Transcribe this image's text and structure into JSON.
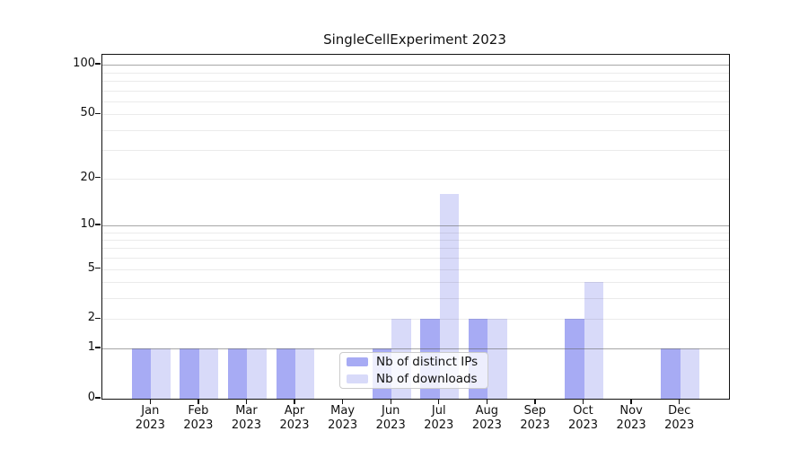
{
  "title": "SingleCellExperiment 2023",
  "chart_data": {
    "type": "bar",
    "title": "SingleCellExperiment 2023",
    "months": [
      "Jan",
      "Feb",
      "Mar",
      "Apr",
      "May",
      "Jun",
      "Jul",
      "Aug",
      "Sep",
      "Oct",
      "Nov",
      "Dec"
    ],
    "year_label": "2023",
    "series": [
      {
        "name": "Nb of distinct IPs",
        "color": "#a7abf4",
        "values": [
          1,
          1,
          1,
          1,
          0,
          1,
          2,
          2,
          0,
          2,
          0,
          1
        ]
      },
      {
        "name": "Nb of downloads",
        "color": "#d8daf9",
        "values": [
          1,
          1,
          1,
          1,
          0,
          2,
          16,
          2,
          0,
          4,
          0,
          1
        ]
      }
    ],
    "y_ticks": [
      0,
      1,
      2,
      5,
      10,
      20,
      50,
      100
    ],
    "y_scale": "log10(1+v)",
    "y_major_gridlines": [
      1,
      10,
      100
    ],
    "y_minor_gridlines": [
      2,
      3,
      4,
      5,
      6,
      7,
      8,
      9,
      20,
      30,
      40,
      50,
      60,
      70,
      80,
      90
    ],
    "ylim": [
      0,
      120
    ],
    "grid": true,
    "legend_position": "lower center",
    "colors": {
      "bar_distinct_ips": "#a7abf4",
      "bar_downloads": "#d8daf9",
      "major_grid": "#b0b0b0",
      "minor_grid": "#e9e9e9",
      "spine": "#111111",
      "background": "#ffffff"
    }
  }
}
